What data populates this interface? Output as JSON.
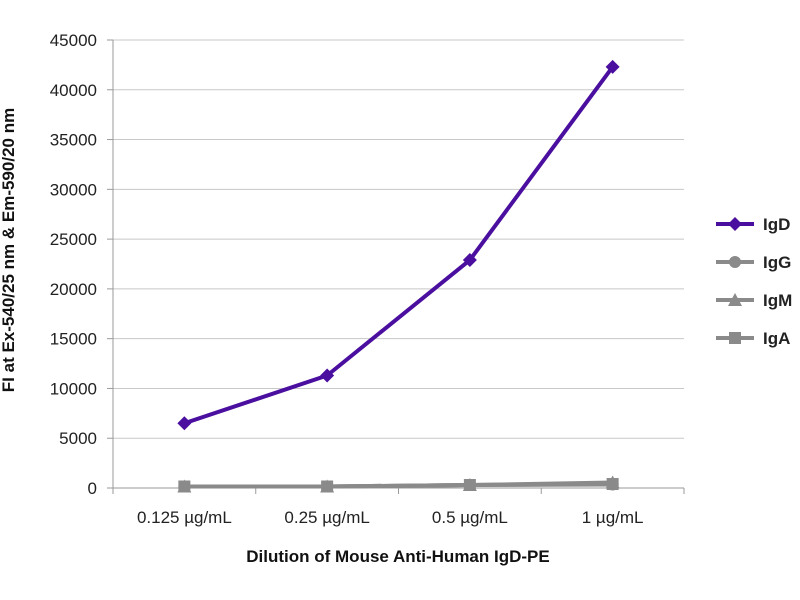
{
  "chart_data": {
    "type": "line",
    "title": "",
    "xlabel": "Dilution of Mouse Anti-Human IgD-PE",
    "ylabel": "FI at Ex-540/25 nm & Em-590/20 nm",
    "categories": [
      "0.125 µg/mL",
      "0.25 µg/mL",
      "0.5 µg/mL",
      "1 µg/mL"
    ],
    "ylim": [
      0,
      45000
    ],
    "yticks": [
      0,
      5000,
      10000,
      15000,
      20000,
      25000,
      30000,
      35000,
      40000,
      45000
    ],
    "grid": true,
    "legend_position": "right",
    "series": [
      {
        "name": "IgD",
        "values": [
          6500,
          11300,
          22900,
          42300
        ],
        "color": "#4b0fa0",
        "marker": "diamond"
      },
      {
        "name": "IgG",
        "values": [
          150,
          150,
          300,
          350
        ],
        "color": "#8a8a8a",
        "marker": "circle"
      },
      {
        "name": "IgM",
        "values": [
          150,
          150,
          300,
          550
        ],
        "color": "#8a8a8a",
        "marker": "triangle"
      },
      {
        "name": "IgA",
        "values": [
          150,
          150,
          300,
          400
        ],
        "color": "#8a8a8a",
        "marker": "square"
      }
    ]
  }
}
